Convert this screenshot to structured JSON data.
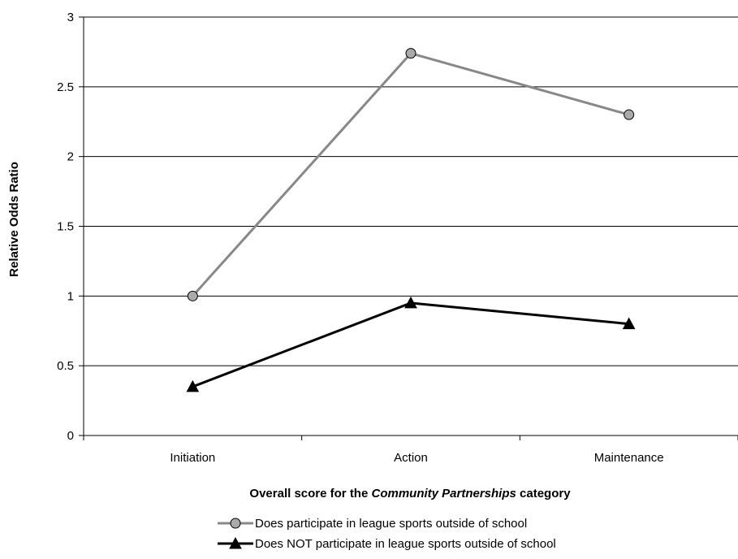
{
  "chart_data": {
    "type": "line",
    "title": "",
    "xlabel_parts": [
      "Overall score for the ",
      "Community Partnerships",
      " category"
    ],
    "ylabel": "Relative Odds Ratio",
    "categories": [
      "Initiation",
      "Action",
      "Maintenance"
    ],
    "ylim": [
      0,
      3
    ],
    "yticks": [
      "0",
      "0.5",
      "1",
      "1.5",
      "2",
      "2.5",
      "3"
    ],
    "grid": true,
    "legend_position": "bottom",
    "series": [
      {
        "name": "Does participate in league sports outside of school",
        "values": [
          1.0,
          2.74,
          2.3
        ],
        "color": "#888888",
        "marker": "circle",
        "marker_fill": "#aaaaaa"
      },
      {
        "name": "Does NOT participate in league sports outside of school",
        "values": [
          0.35,
          0.95,
          0.8
        ],
        "color": "#000000",
        "marker": "triangle",
        "marker_fill": "#000000"
      }
    ]
  }
}
